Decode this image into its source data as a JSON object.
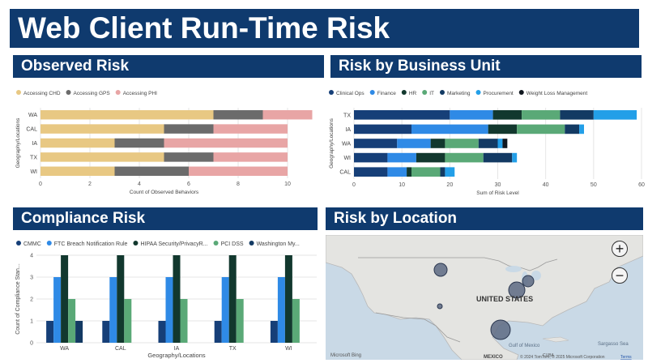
{
  "header": {
    "title": "Web Client Run-Time Risk"
  },
  "observed": {
    "title": "Observed Risk",
    "chart_data": {
      "type": "bar",
      "orientation": "horizontal",
      "stacked": true,
      "categories": [
        "WA",
        "CAL",
        "IA",
        "TX",
        "WI"
      ],
      "series": [
        {
          "name": "Accessing CHD",
          "color": "#e8c883",
          "values": [
            7,
            5,
            3,
            5,
            3
          ]
        },
        {
          "name": "Accessing GPS",
          "color": "#6b6b6b",
          "values": [
            2,
            2,
            2,
            2,
            3
          ]
        },
        {
          "name": "Accessing PHI",
          "color": "#e8a5a5",
          "values": [
            2,
            3,
            5,
            3,
            4
          ]
        }
      ],
      "xlabel": "Count of Observed Behaviors",
      "ylabel": "Geography/Locations",
      "xlim": [
        0,
        10
      ],
      "xticks": [
        0,
        2,
        4,
        6,
        8,
        10
      ],
      "grid": true,
      "legend": "top-left"
    }
  },
  "business": {
    "title": "Risk by Business Unit",
    "chart_data": {
      "type": "bar",
      "orientation": "horizontal",
      "stacked": true,
      "categories": [
        "TX",
        "IA",
        "WA",
        "WI",
        "CAL"
      ],
      "series": [
        {
          "name": "Clinical Ops",
          "color": "#163f78",
          "values": [
            20,
            12,
            9,
            7,
            7
          ]
        },
        {
          "name": "Finance",
          "color": "#2f8ae6",
          "values": [
            9,
            16,
            7,
            6,
            4
          ]
        },
        {
          "name": "HR",
          "color": "#12382e",
          "values": [
            6,
            6,
            3,
            6,
            1
          ]
        },
        {
          "name": "IT",
          "color": "#5aa977",
          "values": [
            8,
            10,
            7,
            8,
            6
          ]
        },
        {
          "name": "Marketing",
          "color": "#133a63",
          "values": [
            7,
            3,
            4,
            6,
            1
          ]
        },
        {
          "name": "Procurement",
          "color": "#239fe8",
          "values": [
            9,
            1,
            1,
            1,
            2
          ]
        },
        {
          "name": "Weight Loss Management",
          "color": "#10171f",
          "values": [
            0,
            0,
            1,
            0,
            0
          ]
        }
      ],
      "xlabel": "Sum of Risk Level",
      "ylabel": "Geography/Locations",
      "xlim": [
        0,
        60
      ],
      "xticks": [
        0,
        10,
        20,
        30,
        40,
        50,
        60
      ],
      "grid": true,
      "legend": "top-left"
    }
  },
  "compliance": {
    "title": "Compliance Risk",
    "chart_data": {
      "type": "bar",
      "orientation": "vertical",
      "stacked": false,
      "categories": [
        "WA",
        "CAL",
        "IA",
        "TX",
        "WI"
      ],
      "series": [
        {
          "name": "CMMC",
          "color": "#163f78",
          "values": [
            1,
            1,
            1,
            1,
            1
          ]
        },
        {
          "name": "FTC Breach Notification Rule",
          "color": "#2f8ae6",
          "values": [
            3,
            3,
            3,
            3,
            3
          ]
        },
        {
          "name": "HIPAA Security/PrivacyR...",
          "color": "#12382e",
          "values": [
            4,
            4,
            4,
            4,
            4
          ]
        },
        {
          "name": "PCI DSS",
          "color": "#5aa977",
          "values": [
            2,
            2,
            2,
            2,
            2
          ]
        },
        {
          "name": "Washington My...",
          "color": "#133a63",
          "values": [
            1,
            0,
            0,
            0,
            0
          ]
        }
      ],
      "xlabel": "Geography/Locations",
      "ylabel": "Count of Compliance Stan...",
      "ylim": [
        0,
        4
      ],
      "yticks": [
        0,
        1,
        2,
        3,
        4
      ],
      "grid": true,
      "legend": "top-left"
    }
  },
  "location": {
    "title": "Risk by Location",
    "country_label": "UNITED STATES",
    "mexico_label": "MEXICO",
    "gulf_label": "Gulf of Mexico",
    "sea_label": "Sargasso Sea",
    "cuba_label": "CUBA",
    "bing_label": "Microsoft Bing",
    "copyright": "© 2024 TomTom, © 2025 Microsoft Corporation",
    "terms": "Terms",
    "zoom_in": "+",
    "zoom_out": "−",
    "bubble_color": "#5d6a82"
  }
}
